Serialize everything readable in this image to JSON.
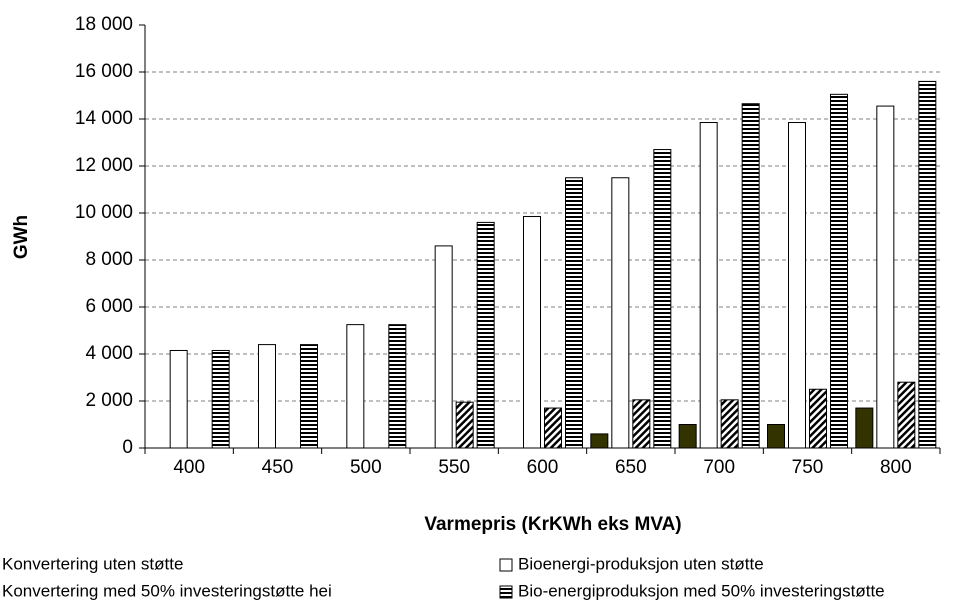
{
  "chart_data": {
    "type": "bar",
    "y_label": "GWh",
    "x_label": "Varmepris (KrKWh eks MVA)",
    "categories": [
      "400",
      "450",
      "500",
      "550",
      "600",
      "650",
      "700",
      "750",
      "800"
    ],
    "series": [
      {
        "name": "Konvertering uten støtte",
        "color": "#333300",
        "hatch": "none",
        "values": [
          0,
          0,
          0,
          0,
          0,
          600,
          1000,
          1000,
          1700
        ]
      },
      {
        "name": "Bioenergi-produksjon uten støtte",
        "color": "#ffffff",
        "hatch": "none",
        "values": [
          4150,
          4400,
          5250,
          8600,
          9850,
          11500,
          13850,
          13850,
          14550
        ]
      },
      {
        "name": "Konvertering med 50% investeringstøtte hei",
        "color": "#000000",
        "hatch": "diagonal",
        "values": [
          0,
          0,
          0,
          1950,
          1700,
          2050,
          2050,
          2500,
          2800
        ]
      },
      {
        "name": "Bio-energiproduksjon med 50% investeringstøtte",
        "color": "#000000",
        "hatch": "horizontal",
        "values": [
          4150,
          4400,
          5250,
          9600,
          11500,
          12700,
          14650,
          15050,
          15600
        ]
      }
    ],
    "ylim": [
      0,
      18000
    ],
    "yticks": [
      0,
      {
        "value": 2000,
        "label": "2 000"
      },
      {
        "value": 4000,
        "label": "4 000"
      },
      {
        "value": 6000,
        "label": "6 000"
      },
      {
        "value": 8000,
        "label": "8 000"
      },
      {
        "value": 10000,
        "label": "10 000"
      },
      {
        "value": 12000,
        "label": "12 000"
      },
      {
        "value": 14000,
        "label": "14 000"
      },
      {
        "value": 16000,
        "label": "16 000"
      },
      {
        "value": 18000,
        "label": "18 000"
      }
    ],
    "grid": true
  }
}
